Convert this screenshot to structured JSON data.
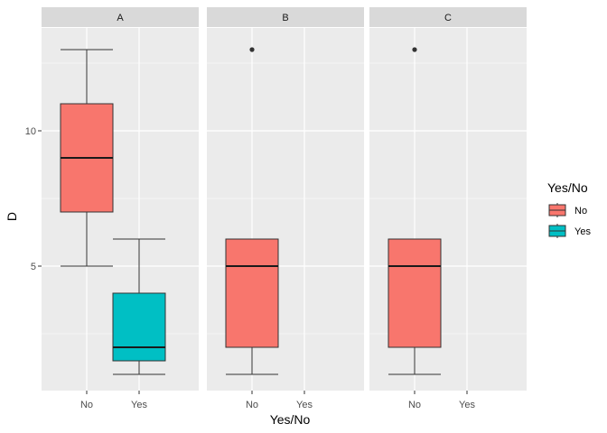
{
  "chart_data": {
    "type": "boxplot",
    "xlabel": "Yes/No",
    "ylabel": "D",
    "ylim": [
      0.4,
      13.8
    ],
    "y_ticks": [
      5,
      10
    ],
    "y_tick_labels": [
      "5",
      "10"
    ],
    "x_categories": [
      "No",
      "Yes"
    ],
    "facets": [
      {
        "label": "A",
        "boxes": [
          {
            "x": "No",
            "fill": "No",
            "lower_whisker": 5,
            "q1": 7,
            "median": 9,
            "q3": 11,
            "upper_whisker": 13,
            "outliers": []
          },
          {
            "x": "Yes",
            "fill": "Yes",
            "lower_whisker": 1,
            "q1": 1.5,
            "median": 2,
            "q3": 4,
            "upper_whisker": 6,
            "outliers": []
          }
        ]
      },
      {
        "label": "B",
        "boxes": [
          {
            "x": "No",
            "fill": "No",
            "lower_whisker": 1,
            "q1": 2,
            "median": 5,
            "q3": 6,
            "upper_whisker": 6,
            "outliers": [
              13
            ]
          }
        ]
      },
      {
        "label": "C",
        "boxes": [
          {
            "x": "No",
            "fill": "No",
            "lower_whisker": 1,
            "q1": 2,
            "median": 5,
            "q3": 6,
            "upper_whisker": 6,
            "outliers": [
              13
            ]
          }
        ]
      }
    ],
    "legend": {
      "title": "Yes/No",
      "position": "right",
      "entries": [
        {
          "label": "No",
          "color": "#F8766D"
        },
        {
          "label": "Yes",
          "color": "#00BFC4"
        }
      ]
    },
    "grid": true,
    "panel_background": "#EBEBEB",
    "strip_background": "#D9D9D9"
  }
}
